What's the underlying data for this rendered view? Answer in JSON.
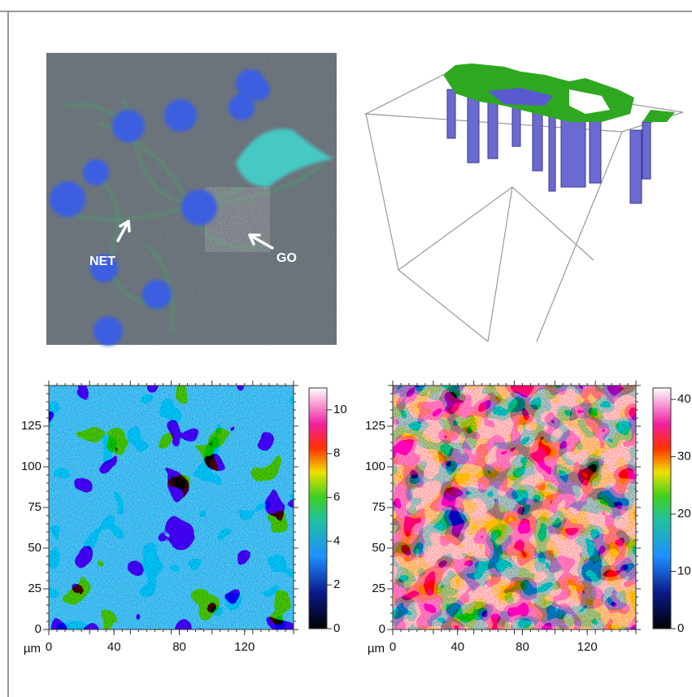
{
  "microscopy": {
    "labels": [
      "NET",
      "GO"
    ]
  },
  "maps": [
    {
      "x_unit": "µm",
      "xlim": [
        0,
        150
      ],
      "ylim": [
        0,
        150
      ],
      "xticks": [
        0,
        40,
        80,
        120
      ],
      "yticks": [
        0,
        25,
        50,
        75,
        100,
        125
      ],
      "colorbar_lim": [
        0,
        11
      ],
      "colorbar_ticks": [
        0,
        2,
        4,
        6,
        8,
        10
      ]
    },
    {
      "x_unit": "µm",
      "xlim": [
        0,
        150
      ],
      "ylim": [
        0,
        150
      ],
      "xticks": [
        0,
        40,
        80,
        120
      ],
      "yticks": [
        0,
        25,
        50,
        75,
        100,
        125
      ],
      "colorbar_lim": [
        0,
        42
      ],
      "colorbar_ticks": [
        0,
        10,
        20,
        30,
        40
      ]
    }
  ]
}
